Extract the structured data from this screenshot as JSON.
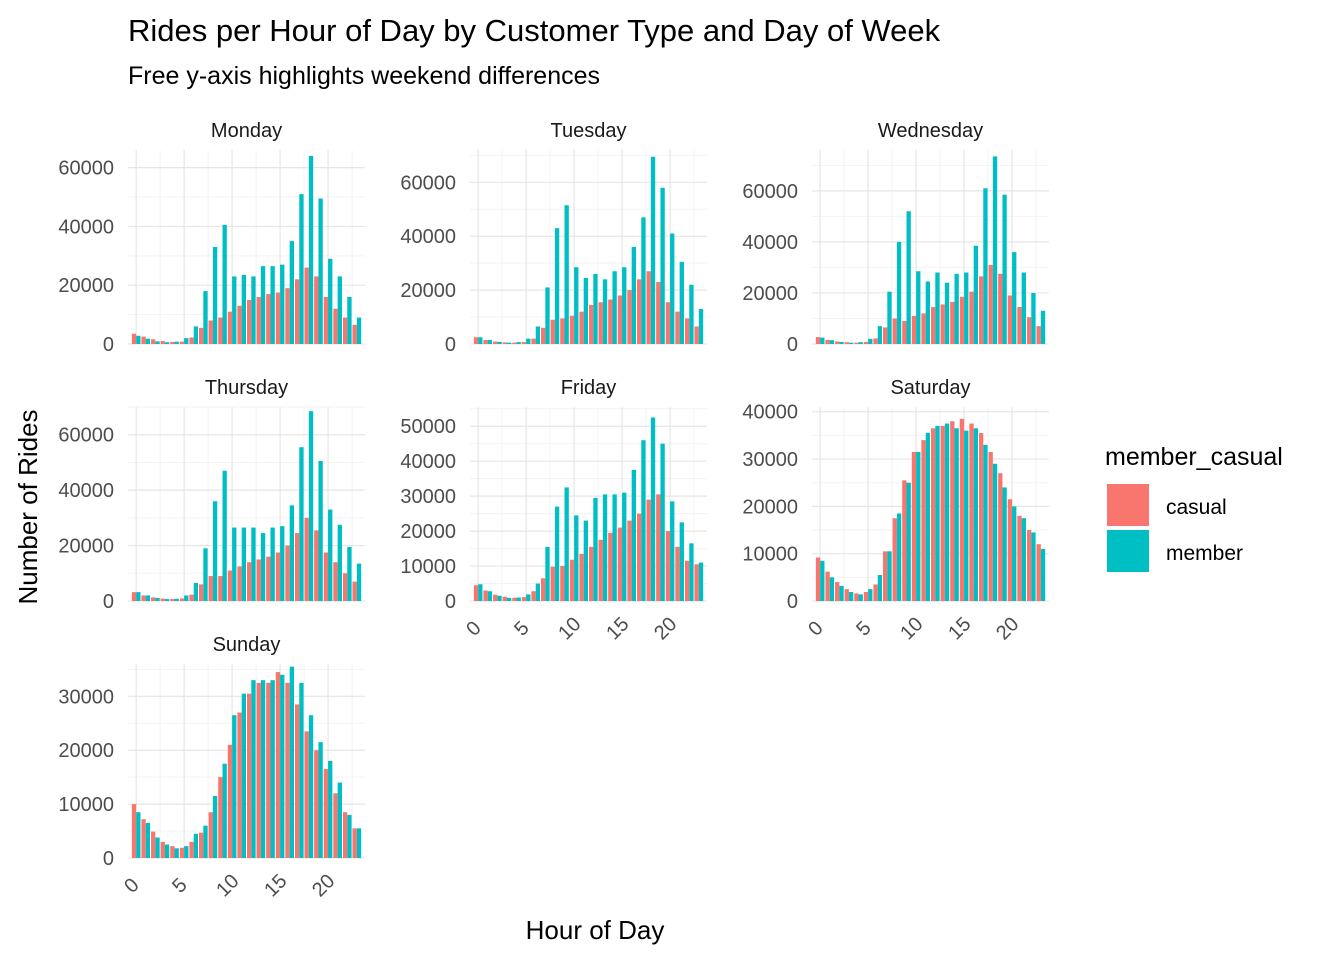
{
  "chart_data": {
    "type": "bar",
    "title": "Rides per Hour of Day by Customer Type and Day of Week",
    "subtitle": "Free y-axis highlights weekend differences",
    "xlabel": "Hour of Day",
    "ylabel": "Number of Rides",
    "legend": {
      "title": "member_casual",
      "position": "right",
      "entries": [
        {
          "name": "casual",
          "color": "#F8766D"
        },
        {
          "name": "member",
          "color": "#00BFC4"
        }
      ]
    },
    "grid": true,
    "x": [
      0,
      1,
      2,
      3,
      4,
      5,
      6,
      7,
      8,
      9,
      10,
      11,
      12,
      13,
      14,
      15,
      16,
      17,
      18,
      19,
      20,
      21,
      22,
      23
    ],
    "x_ticks": [
      "0",
      "5",
      "10",
      "15",
      "20"
    ],
    "panels": [
      {
        "name": "Monday",
        "ylim": [
          0,
          66000
        ],
        "yticks": [
          "0",
          "20000",
          "40000",
          "60000"
        ],
        "series": [
          {
            "name": "casual",
            "values": [
              3500,
              2500,
              1600,
              1000,
              700,
              800,
              2200,
              5500,
              8000,
              9000,
              11000,
              13000,
              15000,
              16000,
              17000,
              17500,
              19000,
              22000,
              26000,
              23000,
              16000,
              12000,
              9000,
              6500
            ]
          },
          {
            "name": "member",
            "values": [
              2800,
              1800,
              900,
              600,
              800,
              2000,
              6000,
              18000,
              33000,
              40500,
              23000,
              23500,
              23000,
              26500,
              26500,
              27000,
              35000,
              51000,
              64000,
              49500,
              29000,
              23000,
              16000,
              9000
            ]
          }
        ]
      },
      {
        "name": "Tuesday",
        "ylim": [
          0,
          72000
        ],
        "yticks": [
          "0",
          "20000",
          "40000",
          "60000"
        ],
        "series": [
          {
            "name": "casual",
            "values": [
              2500,
              1500,
              900,
              600,
              500,
              700,
              2000,
              6000,
              9000,
              9500,
              10500,
              12000,
              14500,
              15500,
              16500,
              18000,
              20000,
              24000,
              27000,
              23000,
              15500,
              12000,
              9500,
              6500
            ]
          },
          {
            "name": "member",
            "values": [
              2500,
              1500,
              800,
              500,
              700,
              2000,
              6500,
              21000,
              43000,
              51500,
              28500,
              24500,
              26000,
              24000,
              27000,
              28500,
              36000,
              47000,
              69500,
              58000,
              41000,
              30500,
              22000,
              13000
            ]
          }
        ]
      },
      {
        "name": "Wednesday",
        "ylim": [
          0,
          76000
        ],
        "yticks": [
          "0",
          "20000",
          "40000",
          "60000"
        ],
        "series": [
          {
            "name": "casual",
            "values": [
              2700,
              1600,
              1000,
              700,
              500,
              800,
              2200,
              6500,
              10000,
              9000,
              11000,
              12000,
              14500,
              15500,
              16500,
              18500,
              20500,
              26500,
              31000,
              27500,
              19000,
              14500,
              10500,
              7000
            ]
          },
          {
            "name": "member",
            "values": [
              2500,
              1500,
              800,
              500,
              700,
              2000,
              7000,
              20500,
              40000,
              52000,
              28500,
              24500,
              28000,
              24000,
              27500,
              28000,
              38500,
              61000,
              73500,
              58500,
              36000,
              28000,
              20000,
              13000
            ]
          }
        ]
      },
      {
        "name": "Thursday",
        "ylim": [
          0,
          70000
        ],
        "yticks": [
          "0",
          "20000",
          "40000",
          "60000"
        ],
        "series": [
          {
            "name": "casual",
            "values": [
              3200,
              2000,
              1300,
              900,
              700,
              900,
              2300,
              6000,
              9000,
              9000,
              11000,
              12500,
              14000,
              15000,
              16000,
              17500,
              20000,
              24500,
              30000,
              25500,
              17500,
              14000,
              10000,
              7000
            ]
          },
          {
            "name": "member",
            "values": [
              3200,
              2000,
              1100,
              700,
              800,
              2000,
              6500,
              19000,
              36000,
              47000,
              26500,
              26500,
              26500,
              24500,
              26500,
              27000,
              34500,
              55500,
              68500,
              50500,
              33000,
              27500,
              19500,
              13500
            ]
          }
        ]
      },
      {
        "name": "Friday",
        "ylim": [
          0,
          55500
        ],
        "yticks": [
          "0",
          "10000",
          "20000",
          "30000",
          "40000",
          "50000"
        ],
        "series": [
          {
            "name": "casual",
            "values": [
              4500,
              3000,
              1800,
              1200,
              900,
              1100,
              2800,
              6500,
              9800,
              10000,
              11800,
              13500,
              15500,
              17500,
              19500,
              21000,
              23000,
              25000,
              29000,
              30500,
              20000,
              15500,
              11500,
              10500
            ]
          },
          {
            "name": "member",
            "values": [
              4800,
              2800,
              1500,
              900,
              1000,
              1900,
              5000,
              15500,
              27000,
              32500,
              24500,
              23000,
              29500,
              30500,
              30500,
              31000,
              37500,
              46000,
              52500,
              45000,
              28500,
              22500,
              16500,
              11000
            ]
          }
        ]
      },
      {
        "name": "Saturday",
        "ylim": [
          0,
          41000
        ],
        "yticks": [
          "0",
          "10000",
          "20000",
          "30000",
          "40000"
        ],
        "series": [
          {
            "name": "casual",
            "values": [
              9200,
              6200,
              4000,
              2500,
              1600,
              1900,
              3500,
              10500,
              17500,
              25500,
              31500,
              34000,
              36500,
              37000,
              38000,
              38500,
              37500,
              35500,
              31500,
              27000,
              21500,
              18000,
              15000,
              12000
            ]
          },
          {
            "name": "member",
            "values": [
              8500,
              5000,
              3200,
              1900,
              1400,
              2500,
              5500,
              10500,
              18500,
              25000,
              31500,
              35500,
              37000,
              37500,
              36500,
              36000,
              36500,
              33000,
              29000,
              24000,
              20000,
              17500,
              14500,
              11000
            ]
          }
        ]
      },
      {
        "name": "Sunday",
        "ylim": [
          0,
          36000
        ],
        "yticks": [
          "0",
          "10000",
          "20000",
          "30000"
        ],
        "series": [
          {
            "name": "casual",
            "values": [
              10000,
              7200,
              4900,
              3000,
              2200,
              1900,
              3000,
              4700,
              8500,
              15000,
              21000,
              27000,
              30500,
              32500,
              32500,
              34500,
              32500,
              28500,
              23500,
              20000,
              16500,
              12000,
              8500,
              5500
            ]
          },
          {
            "name": "member",
            "values": [
              8500,
              6500,
              3800,
              2500,
              1800,
              2200,
              4500,
              6000,
              11500,
              17500,
              26500,
              30500,
              33000,
              33000,
              33000,
              34000,
              35500,
              32500,
              26500,
              21500,
              18000,
              14000,
              8000,
              5500
            ]
          }
        ]
      }
    ]
  }
}
